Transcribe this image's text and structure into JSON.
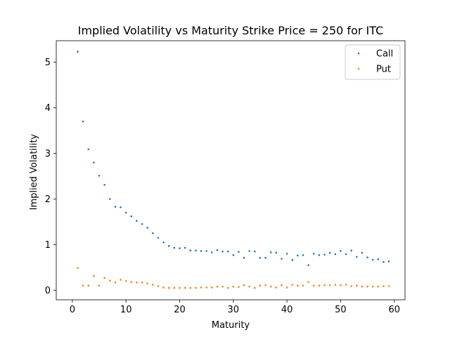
{
  "chart_data": {
    "type": "scatter",
    "title": "Implied Volatility vs Maturity Strike Price = 250 for ITC",
    "xlabel": "Maturity",
    "ylabel": "Implied Volatility",
    "xlim": [
      -3,
      62
    ],
    "ylim": [
      -0.21,
      5.47
    ],
    "xticks": [
      0,
      10,
      20,
      30,
      40,
      50,
      60
    ],
    "yticks": [
      0,
      1,
      2,
      3,
      4,
      5
    ],
    "grid": false,
    "legend_position": "top-right",
    "series": [
      {
        "name": "Call",
        "color": "#1f77b4",
        "x": [
          1,
          2,
          3,
          4,
          5,
          6,
          7,
          8,
          9,
          10,
          11,
          12,
          13,
          14,
          15,
          16,
          17,
          18,
          19,
          20,
          21,
          22,
          23,
          24,
          25,
          26,
          27,
          28,
          29,
          30,
          31,
          32,
          33,
          34,
          35,
          36,
          37,
          38,
          39,
          40,
          41,
          42,
          43,
          44,
          45,
          46,
          47,
          48,
          49,
          50,
          51,
          52,
          53,
          54,
          55,
          56,
          57,
          58,
          59
        ],
        "y": [
          5.23,
          3.7,
          3.09,
          2.8,
          2.51,
          2.31,
          2.0,
          1.83,
          1.82,
          1.7,
          1.62,
          1.52,
          1.45,
          1.37,
          1.25,
          1.15,
          1.05,
          0.97,
          0.93,
          0.92,
          0.93,
          0.87,
          0.87,
          0.86,
          0.86,
          0.83,
          0.88,
          0.85,
          0.85,
          0.77,
          0.84,
          0.71,
          0.86,
          0.85,
          0.71,
          0.71,
          0.83,
          0.82,
          0.69,
          0.8,
          0.66,
          0.76,
          0.77,
          0.55,
          0.8,
          0.77,
          0.78,
          0.82,
          0.79,
          0.86,
          0.79,
          0.87,
          0.73,
          0.82,
          0.72,
          0.67,
          0.68,
          0.62,
          0.63
        ]
      },
      {
        "name": "Put",
        "color": "#ff7f0e",
        "x": [
          1,
          2,
          3,
          4,
          5,
          6,
          7,
          8,
          9,
          10,
          11,
          12,
          13,
          14,
          15,
          16,
          17,
          18,
          19,
          20,
          21,
          22,
          23,
          24,
          25,
          26,
          27,
          28,
          29,
          30,
          31,
          32,
          33,
          34,
          35,
          36,
          37,
          38,
          39,
          40,
          41,
          42,
          43,
          44,
          45,
          46,
          47,
          48,
          49,
          50,
          51,
          52,
          53,
          54,
          55,
          56,
          57,
          58,
          59
        ],
        "y": [
          0.49,
          0.1,
          0.1,
          0.31,
          0.1,
          0.27,
          0.21,
          0.17,
          0.23,
          0.2,
          0.18,
          0.17,
          0.17,
          0.15,
          0.12,
          0.09,
          0.06,
          0.05,
          0.05,
          0.05,
          0.05,
          0.05,
          0.05,
          0.06,
          0.06,
          0.06,
          0.08,
          0.08,
          0.05,
          0.08,
          0.07,
          0.11,
          0.08,
          0.05,
          0.1,
          0.11,
          0.08,
          0.06,
          0.11,
          0.06,
          0.12,
          0.1,
          0.1,
          0.18,
          0.1,
          0.1,
          0.11,
          0.11,
          0.12,
          0.11,
          0.12,
          0.09,
          0.1,
          0.08,
          0.08,
          0.08,
          0.08,
          0.09,
          0.09
        ]
      }
    ]
  }
}
